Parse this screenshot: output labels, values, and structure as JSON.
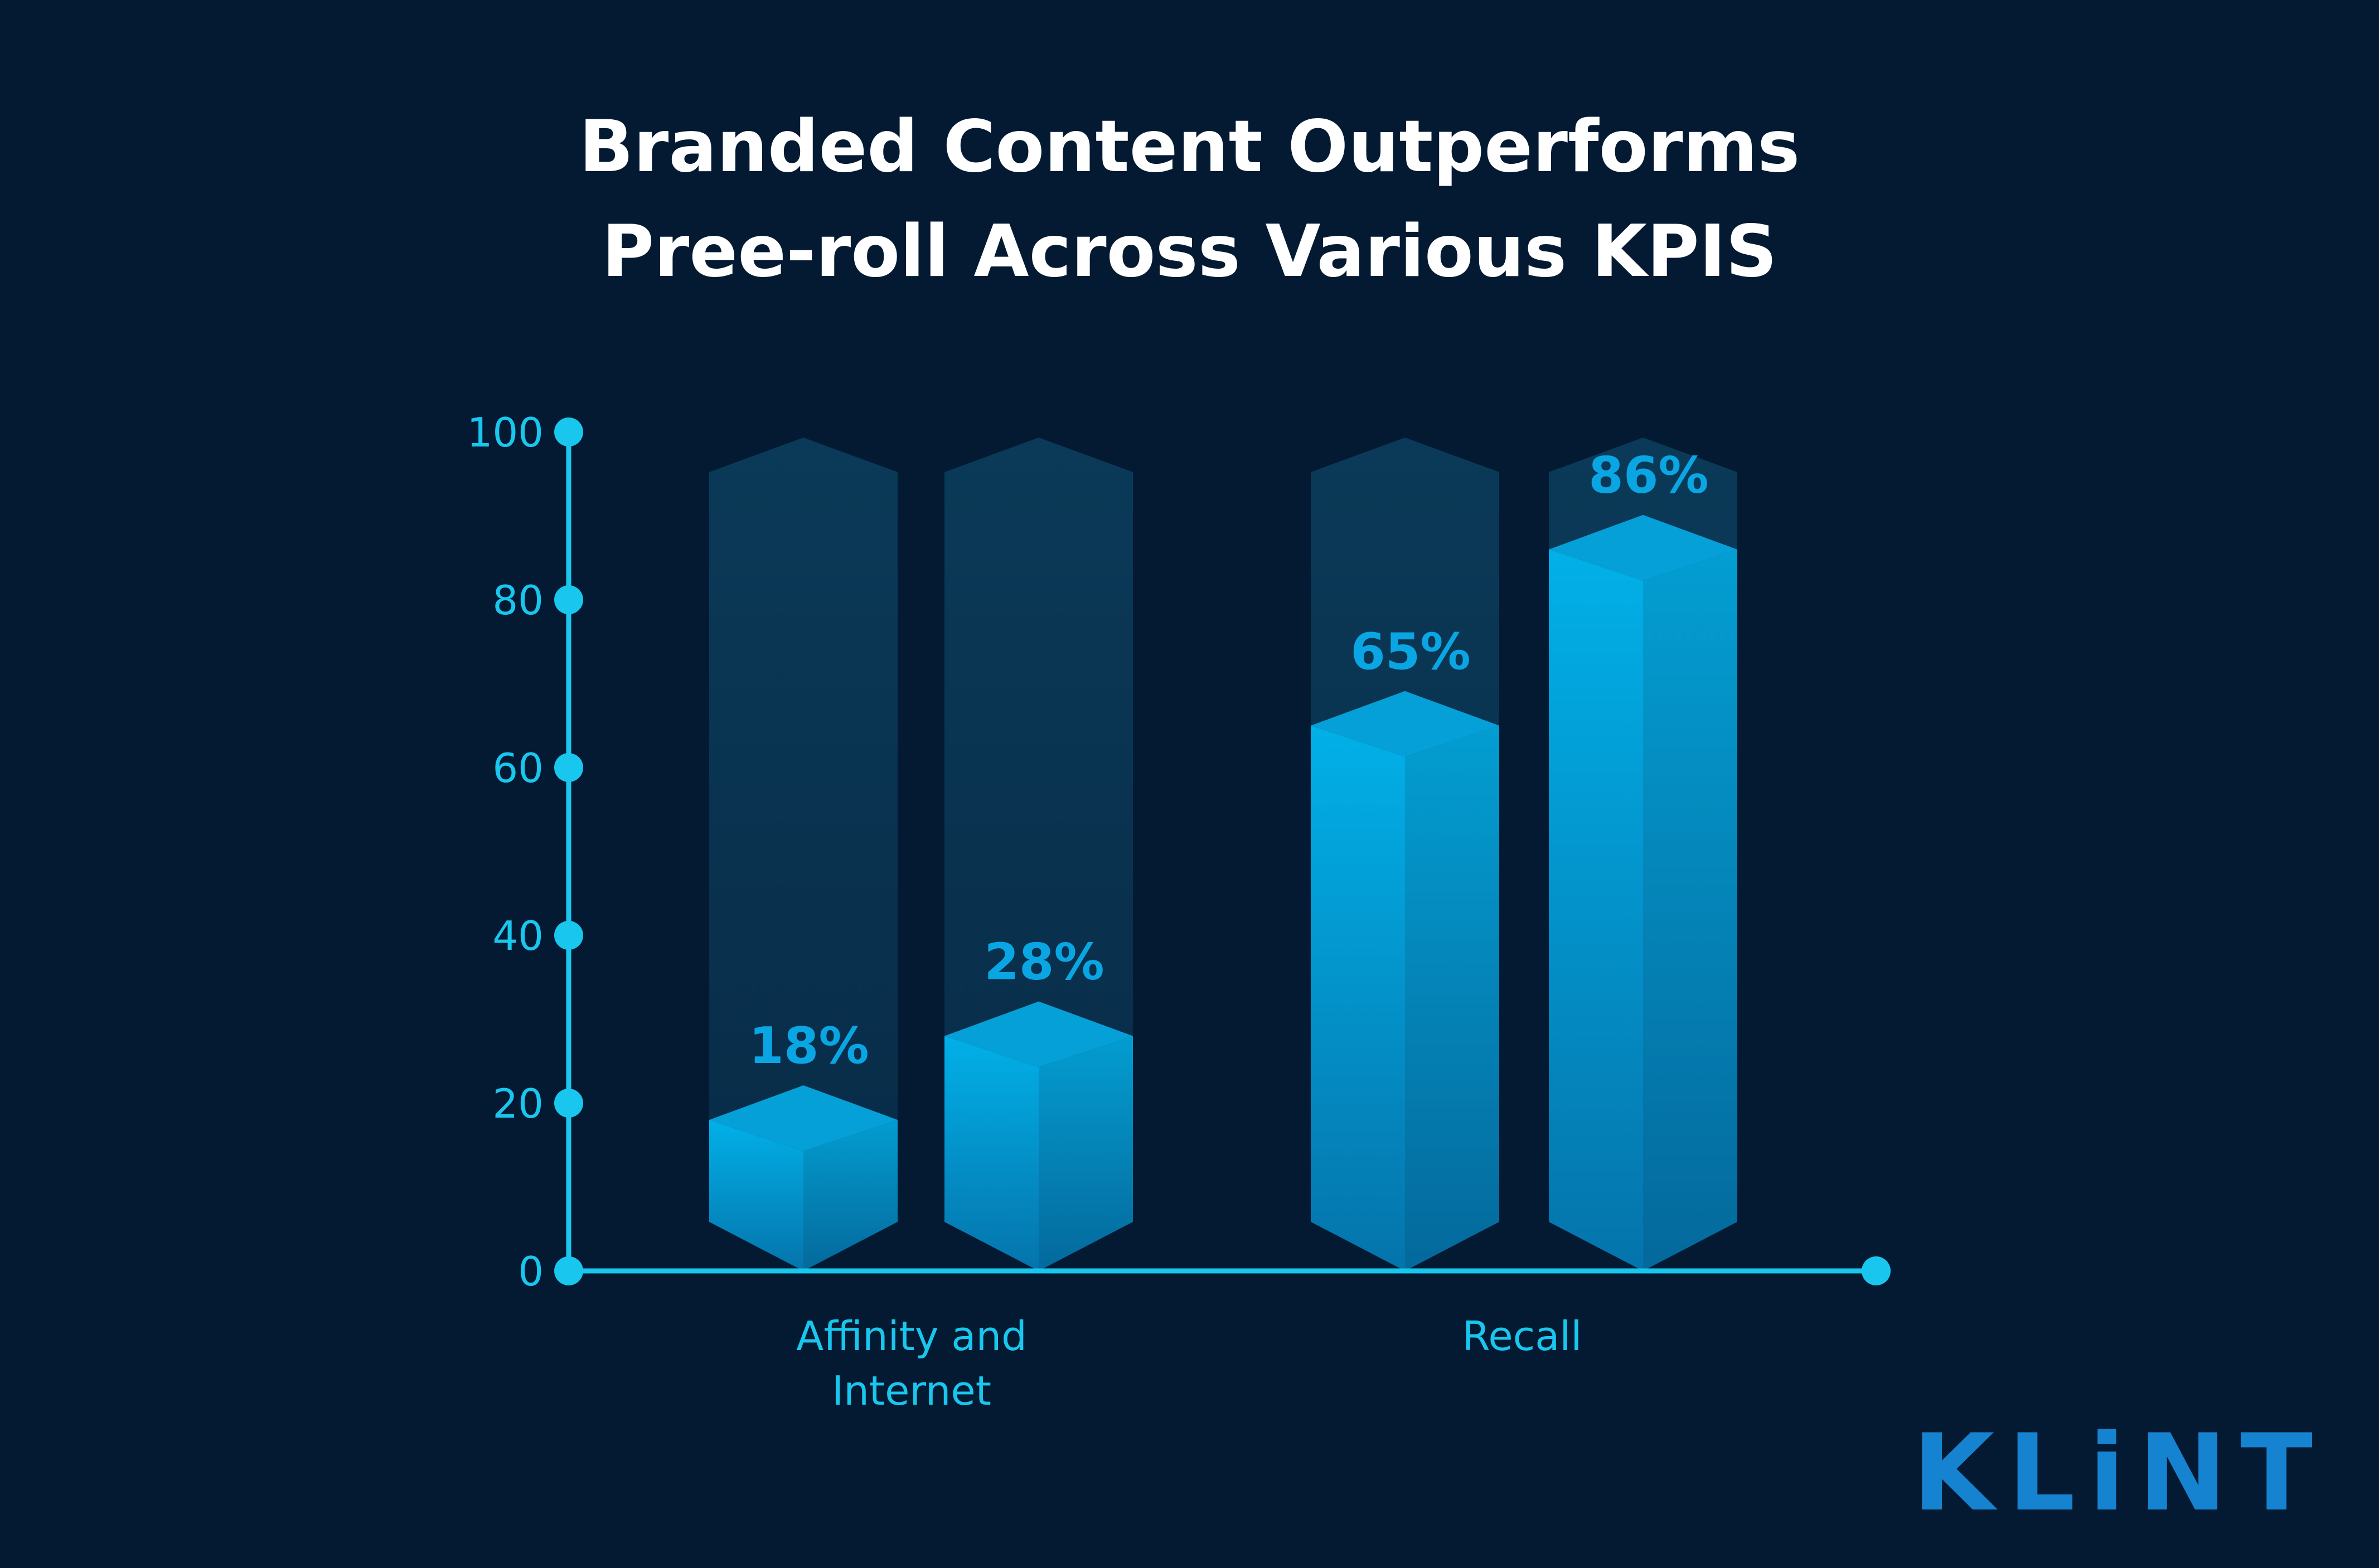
{
  "title": {
    "line1": "Branded Content Outperforms",
    "line2": "Pree-roll Across Various KPIS"
  },
  "logo": "KLiNT",
  "colors": {
    "background": "#041a33",
    "accent": "#19c7ee",
    "bar_top": "#02b0e8",
    "bar_bottom": "#0474ab",
    "bar_ghost": "#0a3a58",
    "value_label": "#0aa6e3"
  },
  "chart_data": {
    "type": "bar",
    "title": "Branded Content Outperforms Pree-roll Across Various KPIS",
    "categories": [
      "Affinity and Internet",
      "Recall"
    ],
    "category_lines": [
      [
        "Affinity and",
        "Internet"
      ],
      [
        "Recall"
      ]
    ],
    "bars": [
      {
        "category": "Affinity and Internet",
        "value": 18,
        "label": "18%"
      },
      {
        "category": "Affinity and Internet",
        "value": 28,
        "label": "28%"
      },
      {
        "category": "Recall",
        "value": 65,
        "label": "65%"
      },
      {
        "category": "Recall",
        "value": 86,
        "label": "86%"
      }
    ],
    "y_ticks": [
      0,
      20,
      40,
      60,
      80,
      100
    ],
    "ylim": [
      0,
      100
    ],
    "xlabel": "",
    "ylabel": "",
    "grid": false,
    "legend": "none"
  }
}
